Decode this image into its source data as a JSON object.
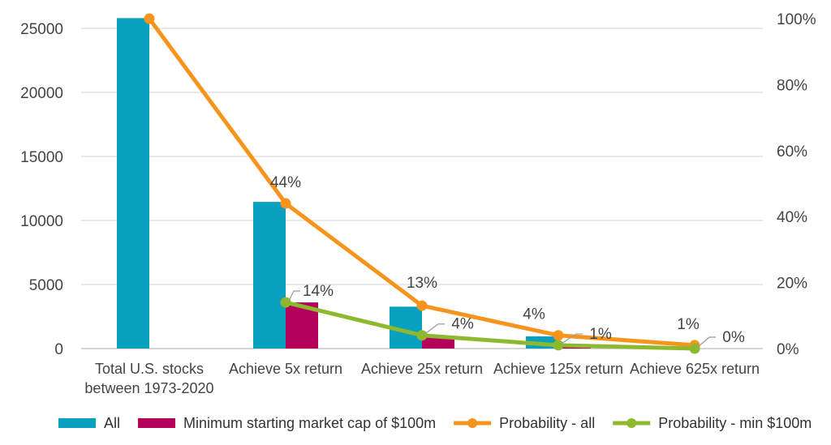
{
  "chart_data": {
    "type": "bar",
    "categories": [
      "Total U.S. stocks|between 1973-2020",
      "Achieve 5x return",
      "Achieve 25x return",
      "Achieve 125x return",
      "Achieve 625x return"
    ],
    "series": [
      {
        "name": "All",
        "kind": "bar",
        "axis": "left",
        "color": "#0aa0bf",
        "values": [
          25800,
          11450,
          3270,
          950,
          0
        ]
      },
      {
        "name": "Minimum starting market cap of $100m",
        "kind": "bar",
        "axis": "left",
        "color": "#b5005b",
        "values": [
          0,
          3600,
          950,
          150,
          0
        ]
      },
      {
        "name": "Probability - all",
        "kind": "line",
        "axis": "right",
        "color": "#f7941d",
        "values": [
          100,
          44,
          13,
          4,
          1
        ],
        "labels": [
          "",
          "44%",
          "13%",
          "4%",
          "1%"
        ]
      },
      {
        "name": "Probability - min $100m",
        "kind": "line",
        "axis": "right",
        "color": "#8db92e",
        "values": [
          null,
          14,
          4,
          1,
          0
        ],
        "labels": [
          "",
          "14%",
          "4%",
          "1%",
          "0%"
        ]
      }
    ],
    "left_axis": {
      "min": 0,
      "max": 25000,
      "ticks": [
        0,
        5000,
        10000,
        15000,
        20000,
        25000
      ]
    },
    "right_axis": {
      "min": 0,
      "max": 100,
      "ticks": [
        "0%",
        "20%",
        "40%",
        "60%",
        "80%",
        "100%"
      ]
    },
    "grid": true,
    "legend_position": "bottom"
  }
}
